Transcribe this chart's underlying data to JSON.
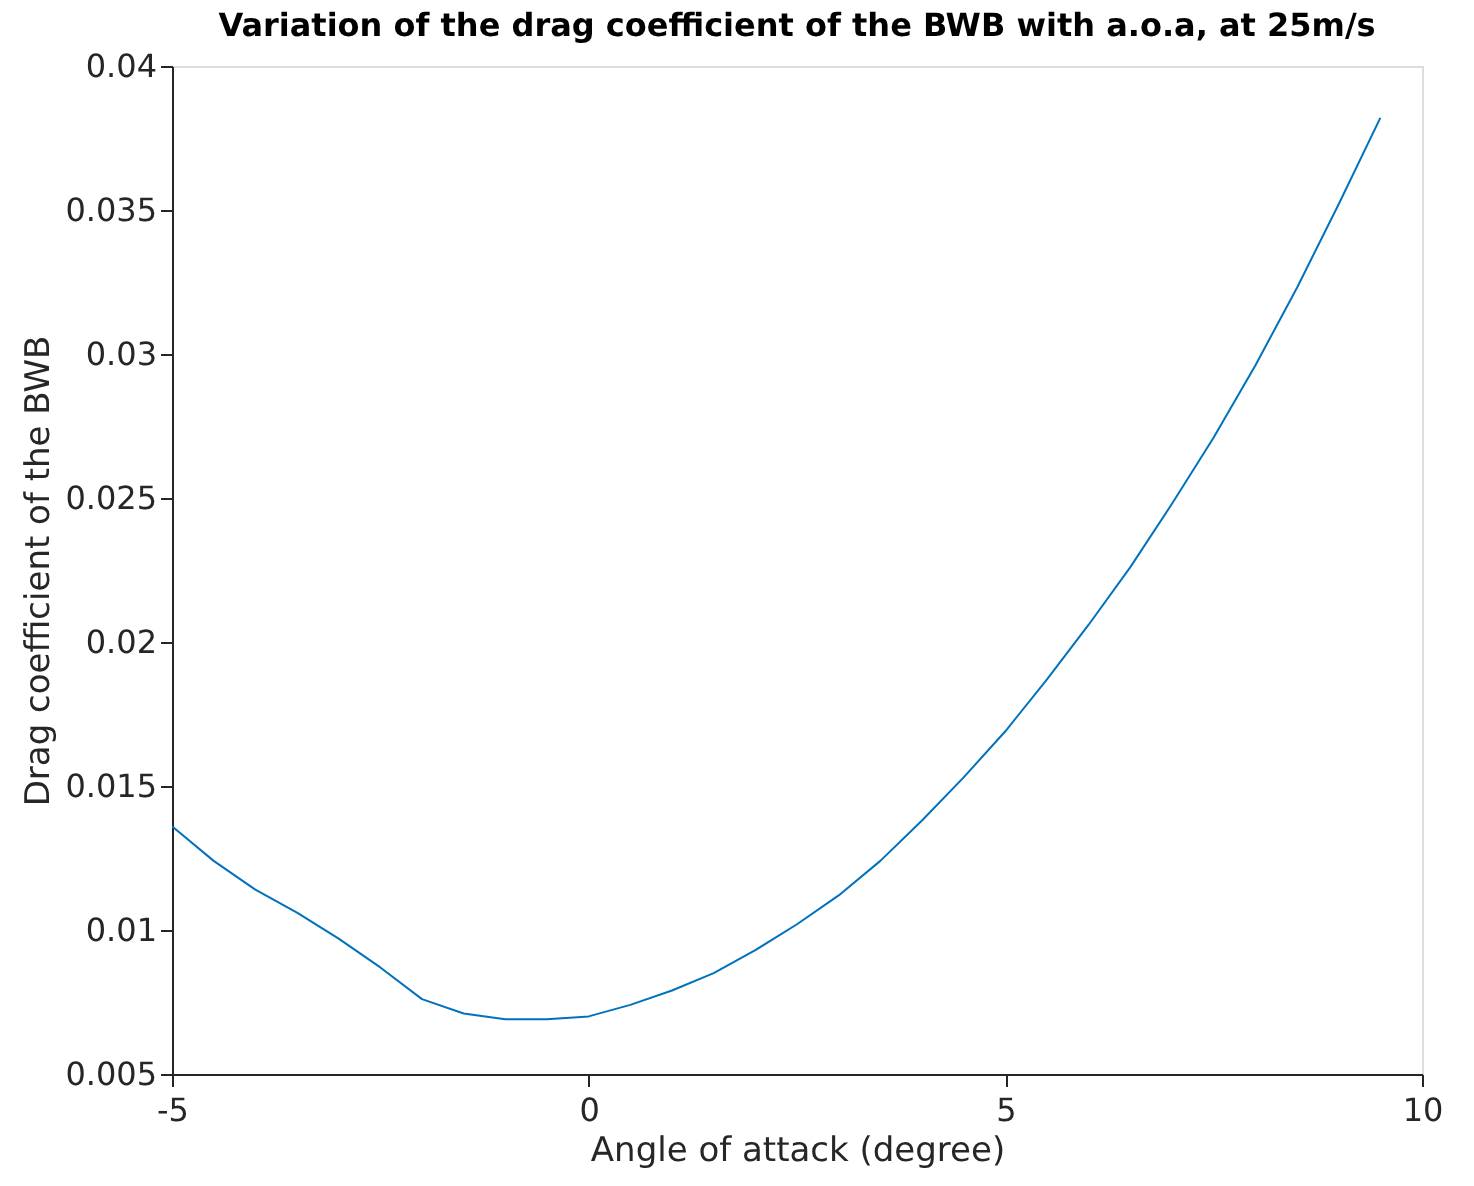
{
  "chart_data": {
    "type": "line",
    "title": "Variation of the drag coefficient of the BWB with a.o.a, at 25m/s",
    "xlabel": "Angle of attack  (degree)",
    "ylabel": "Drag coefficient of the BWB",
    "x": [
      -5,
      -4.5,
      -4,
      -3.5,
      -3,
      -2.5,
      -2,
      -1.5,
      -1,
      -0.5,
      0,
      0.5,
      1,
      1.5,
      2,
      2.5,
      3,
      3.5,
      4,
      4.5,
      5,
      5.5,
      6,
      6.5,
      7,
      7.5,
      8,
      8.5,
      9,
      9.5
    ],
    "series": [
      {
        "color": "#0072bd",
        "values": [
          0.0136,
          0.0124,
          0.0114,
          0.0106,
          0.0097,
          0.0087,
          0.0076,
          0.0071,
          0.0069,
          0.0069,
          0.007,
          0.0074,
          0.0079,
          0.0085,
          0.0093,
          0.0102,
          0.0112,
          0.0124,
          0.0138,
          0.0153,
          0.0169,
          0.0187,
          0.0206,
          0.0226,
          0.0248,
          0.0271,
          0.0296,
          0.0323,
          0.0352,
          0.0382
        ]
      }
    ],
    "xlim": [
      -5,
      10
    ],
    "xticks": [
      -5,
      0,
      5,
      10
    ],
    "ylim": [
      0.005,
      0.04
    ],
    "yticks": [
      0.005,
      0.01,
      0.015,
      0.02,
      0.025,
      0.03,
      0.035,
      0.04
    ],
    "grid": false,
    "marker": "none",
    "line_style": "solid"
  }
}
